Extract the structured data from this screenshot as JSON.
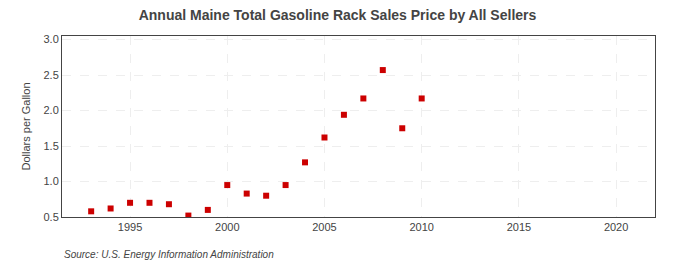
{
  "chart_data": {
    "type": "scatter",
    "title": "Annual Maine Total Gasoline Rack Sales Price by All Sellers",
    "ylabel": "Dollars per Gallon",
    "annotations": [
      "Source: U.S. Energy Information Administration"
    ],
    "x": [
      1993,
      1994,
      1995,
      1996,
      1997,
      1998,
      1999,
      2000,
      2001,
      2002,
      2003,
      2004,
      2005,
      2006,
      2007,
      2008,
      2009,
      2010
    ],
    "values": [
      0.58,
      0.62,
      0.7,
      0.7,
      0.68,
      0.52,
      0.6,
      0.95,
      0.83,
      0.8,
      0.95,
      1.27,
      1.62,
      1.94,
      2.17,
      2.57,
      1.75,
      2.17
    ],
    "color": "#cc0000",
    "marker": "square",
    "xlim": [
      1991.5,
      2022
    ],
    "ylim": [
      0.5,
      3.05
    ],
    "xticks": [
      1995,
      2000,
      2005,
      2010,
      2015,
      2020
    ],
    "yticks": [
      0.5,
      {
        "value": 1,
        "label": "1.0"
      },
      1.5,
      {
        "value": 2,
        "label": "2.0"
      },
      2.5,
      {
        "value": 3,
        "label": "3.0"
      }
    ],
    "grid": true
  }
}
